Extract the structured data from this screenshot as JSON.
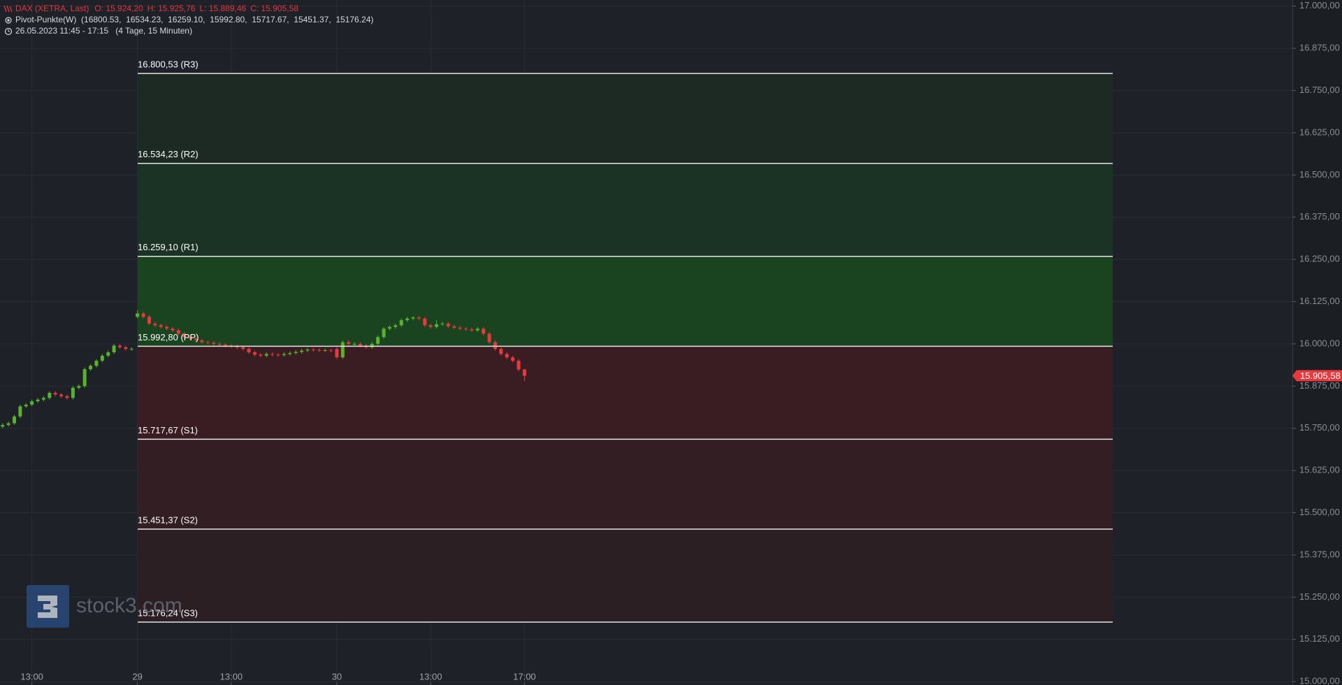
{
  "chart_data": {
    "type": "candlestick",
    "title": "DAX (XETRA, Last)",
    "ohlc_labels": [
      "O: 15.924,20",
      "H: 15.925,76",
      "L: 15.889,46",
      "C: 15.905,58"
    ],
    "indicator": "Pivot-Punkte(W)  (16800.53,  16534.23,  16259.10,  15992.80,  15717.67,  15451.37,  15176.24)",
    "range": "26.05.2023 11:45 - 17:15   (4 Tage, 15 Minuten)",
    "watermark": "stock3.com",
    "categories": [
      null,
      null,
      null,
      null,
      null,
      "13:00",
      null,
      null,
      null,
      null,
      null,
      null,
      null,
      null,
      null,
      null,
      null,
      null,
      null,
      null,
      null,
      null,
      null,
      "29",
      null,
      null,
      null,
      null,
      null,
      null,
      null,
      null,
      null,
      null,
      null,
      null,
      null,
      null,
      null,
      "13:00",
      null,
      null,
      null,
      null,
      null,
      null,
      null,
      null,
      null,
      null,
      null,
      null,
      null,
      null,
      null,
      null,
      null,
      "30",
      null,
      null,
      null,
      null,
      null,
      null,
      null,
      null,
      null,
      null,
      null,
      null,
      null,
      null,
      null,
      "13:00",
      null,
      null,
      null,
      null,
      null,
      null,
      null,
      null,
      null,
      null,
      null,
      null,
      null,
      null,
      null,
      "17:00"
    ],
    "open": [
      15755,
      15760,
      15765,
      15785,
      15815,
      15820,
      15830,
      15835,
      15840,
      15855,
      15850,
      15845,
      15840,
      15870,
      15875,
      15925,
      15935,
      15950,
      15965,
      15975,
      15995,
      15990,
      15985,
      16080,
      16090,
      16080,
      16060,
      16055,
      16050,
      16045,
      16040,
      16030,
      16020,
      16015,
      16010,
      16005,
      16003,
      16000,
      15998,
      15995,
      15993,
      15990,
      15985,
      15975,
      15968,
      15965,
      15970,
      15968,
      15967,
      15970,
      15973,
      15976,
      15980,
      15983,
      15982,
      15981,
      15981,
      15985,
      15960,
      16005,
      16000,
      16000,
      15995,
      15990,
      16000,
      16020,
      16045,
      16050,
      16055,
      16070,
      16075,
      16078,
      16075,
      16055,
      16050,
      16058,
      16060,
      16052,
      16048,
      16045,
      16043,
      16040,
      16045,
      16030,
      16005,
      15985,
      15970,
      15960,
      15950,
      15924.2
    ],
    "high": [
      15765,
      15770,
      15790,
      15820,
      15825,
      15835,
      15840,
      15845,
      15860,
      15860,
      15855,
      15850,
      15875,
      15880,
      15930,
      15940,
      15955,
      15970,
      15980,
      16000,
      16000,
      15995,
      15990,
      16100,
      16095,
      16085,
      16065,
      16060,
      16055,
      16050,
      16045,
      16035,
      16025,
      16020,
      16015,
      16010,
      16008,
      16005,
      16003,
      16000,
      15998,
      15995,
      15990,
      15980,
      15973,
      15975,
      15975,
      15973,
      15975,
      15978,
      15981,
      15985,
      15988,
      15988,
      15987,
      15986,
      15986,
      15990,
      16010,
      16012,
      16005,
      16005,
      16000,
      16005,
      16025,
      16050,
      16055,
      16060,
      16075,
      16080,
      16083,
      16083,
      16080,
      16060,
      16070,
      16065,
      16065,
      16057,
      16053,
      16050,
      16048,
      16050,
      16050,
      16035,
      16010,
      15990,
      15975,
      15965,
      15955,
      15925.76
    ],
    "low": [
      15750,
      15755,
      15760,
      15780,
      15810,
      15815,
      15825,
      15830,
      15835,
      15845,
      15840,
      15835,
      15835,
      15865,
      15870,
      15920,
      15930,
      15945,
      15960,
      15970,
      15985,
      15980,
      15980,
      16075,
      16075,
      16055,
      16050,
      16045,
      16040,
      16035,
      16025,
      16015,
      16010,
      16005,
      16000,
      15998,
      15995,
      15993,
      15990,
      15988,
      15985,
      15980,
      15970,
      15963,
      15960,
      15960,
      15963,
      15962,
      15962,
      15965,
      15968,
      15971,
      15975,
      15977,
      15976,
      15976,
      15975,
      15955,
      15955,
      15995,
      15995,
      15990,
      15985,
      15985,
      15995,
      16015,
      16040,
      16045,
      16050,
      16065,
      16070,
      16070,
      16050,
      16045,
      16045,
      16053,
      16047,
      16043,
      16040,
      16038,
      16035,
      16035,
      16025,
      16000,
      15980,
      15965,
      15955,
      15945,
      15919,
      15889.46
    ],
    "close": [
      15760,
      15765,
      15785,
      15815,
      15820,
      15830,
      15835,
      15840,
      15855,
      15850,
      15845,
      15840,
      15870,
      15875,
      15925,
      15935,
      15950,
      15965,
      15975,
      15995,
      15990,
      15985,
      15985,
      16090,
      16080,
      16060,
      16055,
      16050,
      16045,
      16040,
      16030,
      16020,
      16015,
      16010,
      16005,
      16003,
      16000,
      15998,
      15995,
      15993,
      15990,
      15985,
      15975,
      15968,
      15965,
      15970,
      15968,
      15967,
      15970,
      15973,
      15976,
      15980,
      15983,
      15982,
      15981,
      15981,
      15980,
      15960,
      16005,
      16000,
      16000,
      15995,
      15990,
      16000,
      16020,
      16045,
      16050,
      16055,
      16070,
      16075,
      16078,
      16075,
      16055,
      16050,
      16058,
      16060,
      16052,
      16048,
      16045,
      16043,
      16040,
      16045,
      16030,
      16005,
      15985,
      15970,
      15960,
      15950,
      15924.2,
      15905.58
    ],
    "up_color": "#58b22c",
    "down_color": "#e8393c",
    "ylim": [
      14990,
      17018
    ],
    "yticks": [
      {
        "value": 15000,
        "label": "15.000,00"
      },
      {
        "value": 15125,
        "label": "15.125,00"
      },
      {
        "value": 15250,
        "label": "15.250,00"
      },
      {
        "value": 15375,
        "label": "15.375,00"
      },
      {
        "value": 15500,
        "label": "15.500,00"
      },
      {
        "value": 15625,
        "label": "15.625,00"
      },
      {
        "value": 15750,
        "label": "15.750,00"
      },
      {
        "value": 15875,
        "label": "15.875,00"
      },
      {
        "value": 16000,
        "label": "16.000,00"
      },
      {
        "value": 16125,
        "label": "16.125,00"
      },
      {
        "value": 16250,
        "label": "16.250,00"
      },
      {
        "value": 16375,
        "label": "16.375,00"
      },
      {
        "value": 16500,
        "label": "16.500,00"
      },
      {
        "value": 16625,
        "label": "16.625,00"
      },
      {
        "value": 16750,
        "label": "16.750,00"
      },
      {
        "value": 16875,
        "label": "16.875,00"
      },
      {
        "value": 17000,
        "label": "17.000,00"
      }
    ],
    "grid": true,
    "pivots": [
      {
        "value": 16800.53,
        "label": "16.800,53 (R3)"
      },
      {
        "value": 16534.23,
        "label": "16.534,23 (R2)"
      },
      {
        "value": 16259.1,
        "label": "16.259,10 (R1)"
      },
      {
        "value": 15992.8,
        "label": "15.992,80 (PP)"
      },
      {
        "value": 15717.67,
        "label": "15.717,67 (S1)"
      },
      {
        "value": 15451.37,
        "label": "15.451,37 (S2)"
      },
      {
        "value": 15176.24,
        "label": "15.176,24 (S3)"
      }
    ],
    "zone_colors": [
      "#1d2a24",
      "#1b3324",
      "#1a4320",
      "#3a1d22",
      "#321e23",
      "#2b1f24"
    ],
    "last_price": {
      "value": 15905.58,
      "label": "15.905,58"
    },
    "last_price_color": "#e8393c"
  }
}
